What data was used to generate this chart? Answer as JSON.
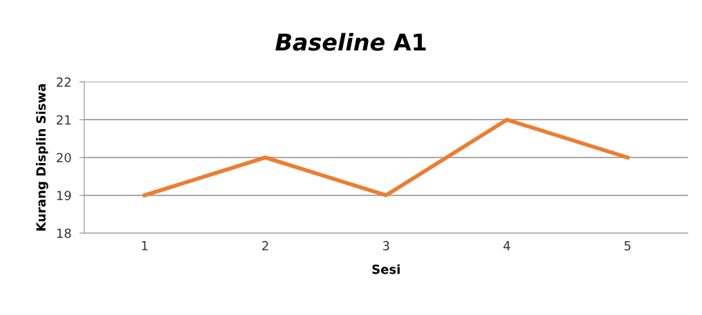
{
  "chart_data": {
    "type": "line",
    "title": "Baseline A1",
    "xlabel": "Sesi",
    "ylabel": "Kurang Displin Siswa",
    "categories": [
      "1",
      "2",
      "3",
      "4",
      "5"
    ],
    "series": [
      {
        "color": "#ed7d31",
        "values": [
          19,
          20,
          19,
          21,
          20
        ]
      }
    ],
    "ylim": [
      18,
      22
    ],
    "yticks": [
      18,
      19,
      20,
      21,
      22
    ],
    "grid": "y",
    "legend": false,
    "marker": "none",
    "line_style": "solid"
  }
}
